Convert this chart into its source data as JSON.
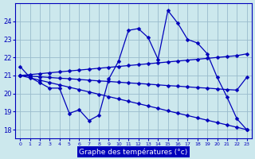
{
  "background_color": "#cce8ed",
  "grid_color": "#99bbcc",
  "line_color": "#0000bb",
  "xlabel": "Graphe des températures (°c)",
  "xlim": [
    -0.5,
    23.5
  ],
  "ylim": [
    17.5,
    25.0
  ],
  "yticks": [
    18,
    19,
    20,
    21,
    22,
    23,
    24
  ],
  "xticks": [
    0,
    1,
    2,
    3,
    4,
    5,
    6,
    7,
    8,
    9,
    10,
    11,
    12,
    13,
    14,
    15,
    16,
    17,
    18,
    19,
    20,
    21,
    22,
    23
  ],
  "series": [
    {
      "x": [
        0,
        1,
        2,
        3,
        4,
        5,
        6,
        7,
        8,
        9,
        10,
        11,
        12,
        13,
        14,
        15,
        16,
        17,
        18,
        19,
        20,
        21,
        22,
        23
      ],
      "y": [
        21.5,
        20.9,
        20.6,
        20.3,
        20.3,
        18.9,
        19.1,
        18.5,
        18.8,
        20.8,
        21.8,
        23.5,
        23.6,
        23.1,
        21.9,
        24.6,
        23.9,
        23.0,
        22.8,
        22.2,
        20.9,
        19.8,
        18.6,
        18.0
      ]
    },
    {
      "x": [
        0,
        1,
        2,
        3,
        4,
        5,
        6,
        7,
        8,
        9,
        10,
        11,
        12,
        13,
        14,
        15,
        16,
        17,
        18,
        19,
        20,
        21,
        22,
        23
      ],
      "y": [
        21.0,
        21.05,
        21.1,
        21.15,
        21.2,
        21.25,
        21.3,
        21.35,
        21.4,
        21.45,
        21.5,
        21.55,
        21.6,
        21.65,
        21.7,
        21.75,
        21.8,
        21.85,
        21.9,
        21.95,
        22.0,
        22.05,
        22.1,
        22.2
      ]
    },
    {
      "x": [
        0,
        1,
        2,
        3,
        4,
        5,
        6,
        7,
        8,
        9,
        10,
        11,
        12,
        13,
        14,
        15,
        16,
        17,
        18,
        19,
        20,
        21,
        22,
        23
      ],
      "y": [
        21.0,
        20.96,
        20.93,
        20.89,
        20.85,
        20.82,
        20.78,
        20.74,
        20.7,
        20.67,
        20.63,
        20.59,
        20.56,
        20.52,
        20.48,
        20.44,
        20.41,
        20.37,
        20.33,
        20.3,
        20.26,
        20.22,
        20.19,
        20.9
      ]
    },
    {
      "x": [
        0,
        1,
        2,
        3,
        4,
        5,
        6,
        7,
        8,
        9,
        10,
        11,
        12,
        13,
        14,
        15,
        16,
        17,
        18,
        19,
        20,
        21,
        22,
        23
      ],
      "y": [
        21.0,
        20.87,
        20.74,
        20.61,
        20.48,
        20.35,
        20.22,
        20.09,
        19.96,
        19.83,
        19.7,
        19.57,
        19.44,
        19.31,
        19.18,
        19.04,
        18.91,
        18.78,
        18.65,
        18.52,
        18.39,
        18.26,
        18.13,
        18.0
      ]
    }
  ]
}
